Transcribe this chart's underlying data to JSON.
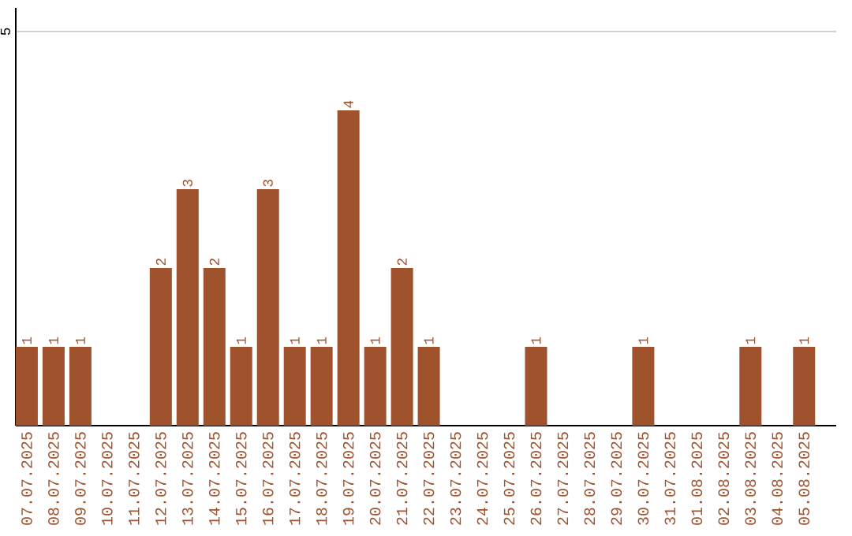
{
  "chart_data": {
    "type": "bar",
    "categories": [
      "07.07.2025",
      "08.07.2025",
      "09.07.2025",
      "10.07.2025",
      "11.07.2025",
      "12.07.2025",
      "13.07.2025",
      "14.07.2025",
      "15.07.2025",
      "16.07.2025",
      "17.07.2025",
      "18.07.2025",
      "19.07.2025",
      "20.07.2025",
      "21.07.2025",
      "22.07.2025",
      "23.07.2025",
      "24.07.2025",
      "25.07.2025",
      "26.07.2025",
      "27.07.2025",
      "28.07.2025",
      "29.07.2025",
      "30.07.2025",
      "31.07.2025",
      "01.08.2025",
      "02.08.2025",
      "03.08.2025",
      "04.08.2025",
      "05.08.2025"
    ],
    "values": [
      1,
      1,
      1,
      0,
      0,
      2,
      3,
      2,
      1,
      3,
      1,
      1,
      4,
      1,
      2,
      1,
      0,
      0,
      0,
      1,
      0,
      0,
      0,
      1,
      0,
      0,
      0,
      1,
      0,
      1
    ],
    "value_labels": [
      "1",
      "1",
      "1",
      null,
      null,
      "2",
      "3",
      "2",
      "1",
      "3",
      "1",
      "1",
      "4",
      "1",
      "2",
      "1",
      null,
      null,
      null,
      "1",
      null,
      null,
      null,
      "1",
      null,
      null,
      null,
      "1",
      null,
      "1"
    ],
    "color": "#a0522d",
    "ylim": [
      0,
      5.3
    ],
    "yticks": [
      5
    ],
    "grid": "y"
  }
}
